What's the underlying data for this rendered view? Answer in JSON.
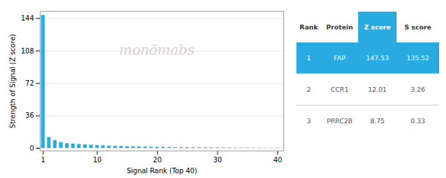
{
  "chart_data": {
    "type": "bar",
    "xlabel": "Signal Rank (Top 40)",
    "ylabel": "Strength of Signal (Z score)",
    "x": [
      1,
      2,
      3,
      4,
      5,
      6,
      7,
      8,
      9,
      10,
      11,
      12,
      13,
      14,
      15,
      16,
      17,
      18,
      19,
      20,
      21,
      22,
      23,
      24,
      25,
      26,
      27,
      28,
      29,
      30,
      31,
      32,
      33,
      34,
      35,
      36,
      37,
      38,
      39,
      40
    ],
    "values": [
      147.53,
      12.01,
      8.75,
      6.5,
      5.2,
      4.8,
      4.3,
      3.9,
      3.5,
      3.1,
      2.8,
      2.5,
      2.3,
      2.1,
      1.9,
      1.7,
      1.5,
      1.4,
      1.3,
      1.2,
      1.1,
      1.0,
      0.9,
      0.85,
      0.8,
      0.75,
      0.7,
      0.65,
      0.6,
      0.55,
      0.5,
      0.45,
      0.4,
      0.38,
      0.35,
      0.32,
      0.29,
      0.26,
      0.23,
      0.2
    ],
    "color": "#29abe2",
    "xlim": [
      0.5,
      41
    ],
    "xticks": [
      1,
      10,
      20,
      30,
      40
    ],
    "ylim": [
      -3,
      152
    ],
    "yticks": [
      0,
      36,
      72,
      108,
      144
    ],
    "grid": true,
    "annotations": [
      "monömabs"
    ],
    "table": {
      "headers": [
        "Rank",
        "Protein",
        "Z score",
        "S score"
      ],
      "rows": [
        [
          "1",
          "FAP",
          "147.53",
          "135.52"
        ],
        [
          "2",
          "CCR1",
          "12.01",
          "3.26"
        ],
        [
          "3",
          "PRRC2B",
          "8.75",
          "0.33"
        ]
      ]
    }
  }
}
